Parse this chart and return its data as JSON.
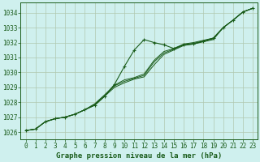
{
  "title": "Graphe pression niveau de la mer (hPa)",
  "background_color": "#cff0ee",
  "plot_bg_color": "#cff0ee",
  "grid_color": "#b0c8b0",
  "line_color": "#1a5c1a",
  "marker_color": "#1a5c1a",
  "xlim": [
    -0.5,
    23.5
  ],
  "ylim": [
    1025.5,
    1034.7
  ],
  "xticks": [
    0,
    1,
    2,
    3,
    4,
    5,
    6,
    7,
    8,
    9,
    10,
    11,
    12,
    13,
    14,
    15,
    16,
    17,
    18,
    19,
    20,
    21,
    22,
    23
  ],
  "yticks": [
    1026,
    1027,
    1028,
    1029,
    1030,
    1031,
    1032,
    1033,
    1034
  ],
  "series_bump": [
    1026.1,
    1026.2,
    1026.7,
    1026.9,
    1027.0,
    1027.2,
    1027.5,
    1027.8,
    1028.4,
    1029.2,
    1030.4,
    1031.5,
    1032.2,
    1032.0,
    1031.85,
    1031.6,
    1031.85,
    1031.9,
    1032.1,
    1032.3,
    1033.0,
    1033.5,
    1034.05,
    1034.3
  ],
  "series_linear1": [
    1026.1,
    1026.2,
    1026.7,
    1026.9,
    1027.0,
    1027.2,
    1027.5,
    1027.8,
    1028.4,
    1029.0,
    1029.3,
    1029.55,
    1029.7,
    1030.5,
    1031.2,
    1031.5,
    1031.8,
    1031.9,
    1032.05,
    1032.2,
    1033.0,
    1033.5,
    1034.05,
    1034.3
  ],
  "series_linear2": [
    1026.1,
    1026.2,
    1026.7,
    1026.9,
    1027.0,
    1027.2,
    1027.5,
    1027.85,
    1028.45,
    1029.1,
    1029.4,
    1029.6,
    1029.8,
    1030.7,
    1031.3,
    1031.55,
    1031.85,
    1031.95,
    1032.1,
    1032.25,
    1033.0,
    1033.5,
    1034.05,
    1034.3
  ],
  "series_linear3": [
    1026.1,
    1026.2,
    1026.7,
    1026.9,
    1027.0,
    1027.2,
    1027.5,
    1027.9,
    1028.5,
    1029.15,
    1029.5,
    1029.65,
    1029.9,
    1030.8,
    1031.4,
    1031.6,
    1031.9,
    1032.0,
    1032.15,
    1032.3,
    1033.0,
    1033.5,
    1034.05,
    1034.3
  ],
  "tick_fontsize": 5.5,
  "xlabel_fontsize": 6.5
}
